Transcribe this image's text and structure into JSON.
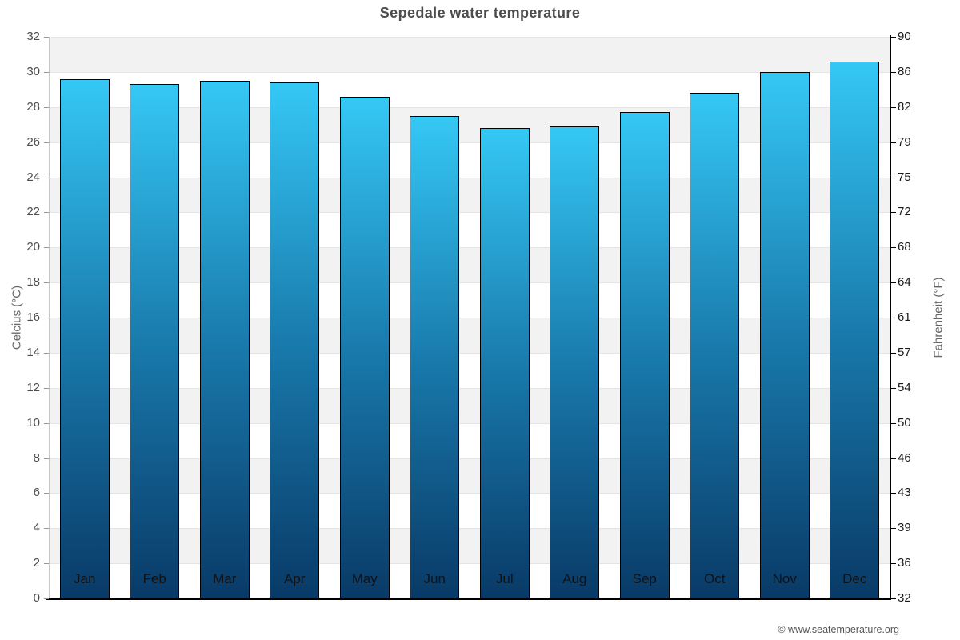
{
  "title": "Sepedale water temperature",
  "attribution": "© www.seatemperature.org",
  "chart_data": {
    "type": "bar",
    "title": "Sepedale water temperature",
    "categories": [
      "Jan",
      "Feb",
      "Mar",
      "Apr",
      "May",
      "Jun",
      "Jul",
      "Aug",
      "Sep",
      "Oct",
      "Nov",
      "Dec"
    ],
    "values": [
      29.6,
      29.3,
      29.5,
      29.4,
      28.6,
      27.5,
      26.8,
      26.9,
      27.7,
      28.8,
      30.0,
      30.6
    ],
    "xlabel": "",
    "ylabel_left": "Celcius (°C)",
    "ylabel_right": "Fahrenheit (°F)",
    "ylim_celsius": [
      0,
      32
    ],
    "ylim_fahrenheit": [
      32,
      90
    ],
    "celsius_ticks": [
      0,
      2,
      4,
      6,
      8,
      10,
      12,
      14,
      16,
      18,
      20,
      22,
      24,
      26,
      28,
      30,
      32
    ],
    "fahrenheit_ticks": [
      32,
      36,
      39,
      43,
      46,
      50,
      54,
      57,
      61,
      64,
      68,
      72,
      75,
      79,
      82,
      86,
      90
    ],
    "legend": "none",
    "grid": "alternating horizontal bands every 2°C",
    "colors": {
      "bar_top": "#35c8f5",
      "bar_mid": "#1878aa",
      "bar_bottom": "#093a67",
      "bar_border": "#000000",
      "band_gray": "#f2f2f2",
      "band_white": "#ffffff",
      "title_color": "#4d4d4d",
      "axis_title_color": "#666666",
      "tick_color_left": "#4d4d4d",
      "tick_color_right": "#1a1a1a",
      "month_label_color": "#111111",
      "attribution_color": "#555555"
    }
  }
}
